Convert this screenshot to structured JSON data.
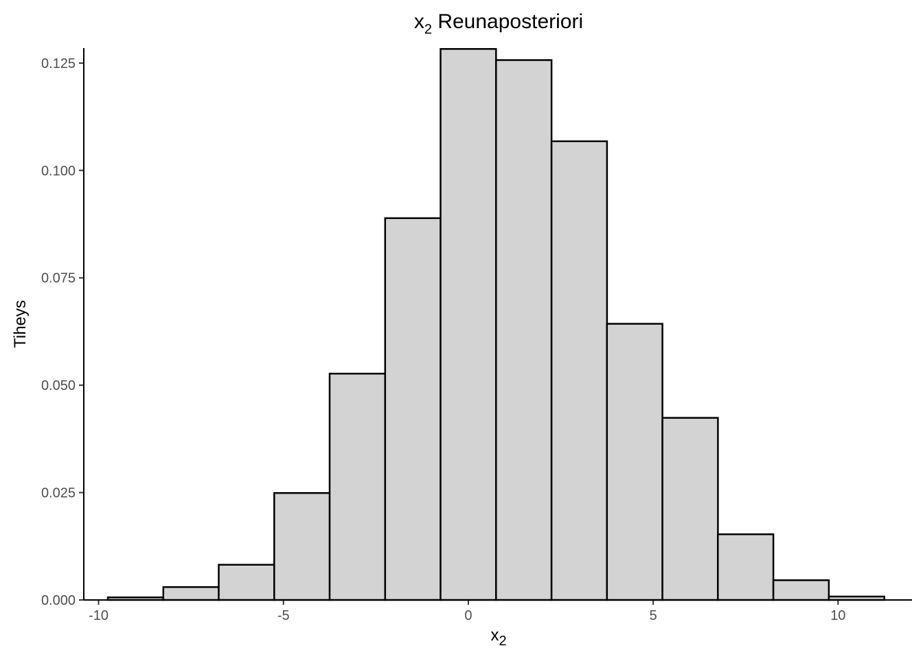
{
  "chart_data": {
    "type": "bar",
    "subtype": "histogram",
    "title": {
      "main": "x",
      "subscript": "2",
      "rest": " Reunaposteriori"
    },
    "xlabel": {
      "main": "x",
      "subscript": "2"
    },
    "ylabel": "Tiheys",
    "xlim": [
      -10.4,
      12.0
    ],
    "ylim": [
      0,
      0.1285
    ],
    "x_ticks": [
      {
        "value": -10,
        "label": "-10"
      },
      {
        "value": -5,
        "label": "-5"
      },
      {
        "value": 0,
        "label": "0"
      },
      {
        "value": 5,
        "label": "5"
      },
      {
        "value": 10,
        "label": "10"
      }
    ],
    "y_ticks": [
      {
        "value": 0.0,
        "label": "0.000"
      },
      {
        "value": 0.025,
        "label": "0.025"
      },
      {
        "value": 0.05,
        "label": "0.050"
      },
      {
        "value": 0.075,
        "label": "0.075"
      },
      {
        "value": 0.1,
        "label": "0.100"
      },
      {
        "value": 0.125,
        "label": "0.125"
      }
    ],
    "bins": [
      {
        "x0": -9.75,
        "x1": -8.25,
        "density": 0.0006
      },
      {
        "x0": -8.25,
        "x1": -6.75,
        "density": 0.003
      },
      {
        "x0": -6.75,
        "x1": -5.25,
        "density": 0.0082
      },
      {
        "x0": -5.25,
        "x1": -3.75,
        "density": 0.0249
      },
      {
        "x0": -3.75,
        "x1": -2.25,
        "density": 0.0527
      },
      {
        "x0": -2.25,
        "x1": -0.75,
        "density": 0.0889
      },
      {
        "x0": -0.75,
        "x1": 0.75,
        "density": 0.1283
      },
      {
        "x0": 0.75,
        "x1": 2.25,
        "density": 0.1257
      },
      {
        "x0": 2.25,
        "x1": 3.75,
        "density": 0.1068
      },
      {
        "x0": 3.75,
        "x1": 5.25,
        "density": 0.0643
      },
      {
        "x0": 5.25,
        "x1": 6.75,
        "density": 0.0424
      },
      {
        "x0": 6.75,
        "x1": 8.25,
        "density": 0.0153
      },
      {
        "x0": 8.25,
        "x1": 9.75,
        "density": 0.0046
      },
      {
        "x0": 9.75,
        "x1": 11.25,
        "density": 0.0008
      }
    ],
    "grid": false,
    "legend": "none",
    "colors": {
      "fill": "#d3d3d3",
      "outline": "#000000"
    }
  }
}
